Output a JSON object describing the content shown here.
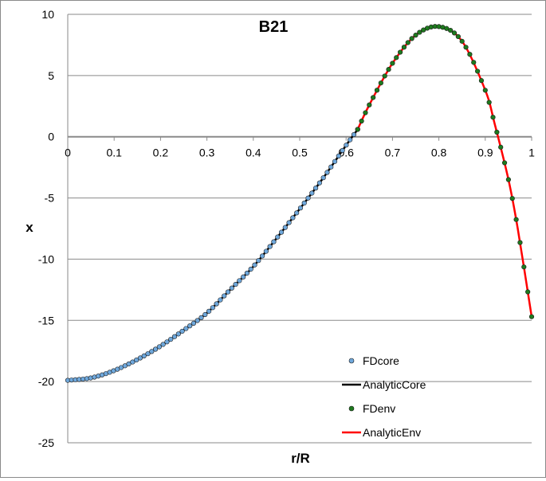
{
  "chart_data": {
    "type": "line",
    "title": "B21",
    "xlabel": "r/R",
    "ylabel": "x",
    "xlim": [
      0,
      1
    ],
    "ylim": [
      -25,
      10
    ],
    "grid": true,
    "x_ticks": [
      "0",
      "0.1",
      "0.2",
      "0.3",
      "0.4",
      "0.5",
      "0.6",
      "0.7",
      "0.8",
      "0.9",
      "1"
    ],
    "y_ticks": [
      "10",
      "5",
      "0",
      "-5",
      "-10",
      "-15",
      "-20",
      "-25"
    ],
    "legend_position": "bottom-right",
    "series": [
      {
        "name": "FDcore",
        "style": "markers",
        "color": "#6fa8dc",
        "x": [
          0.0,
          0.05,
          0.1,
          0.15,
          0.2,
          0.25,
          0.3,
          0.35,
          0.4,
          0.45,
          0.5,
          0.55,
          0.6,
          0.625
        ],
        "y": [
          -19.9,
          -19.7,
          -19.1,
          -18.2,
          -17.1,
          -15.8,
          -14.4,
          -12.5,
          -10.6,
          -8.3,
          -5.9,
          -3.4,
          -0.7,
          0.6
        ]
      },
      {
        "name": "AnalyticCore",
        "style": "line",
        "color": "#000000",
        "x": [
          0.0,
          0.05,
          0.1,
          0.15,
          0.2,
          0.25,
          0.3,
          0.35,
          0.4,
          0.45,
          0.5,
          0.55,
          0.6,
          0.625
        ],
        "y": [
          -19.9,
          -19.7,
          -19.1,
          -18.2,
          -17.1,
          -15.8,
          -14.4,
          -12.5,
          -10.6,
          -8.3,
          -5.9,
          -3.4,
          -0.7,
          0.6
        ]
      },
      {
        "name": "FDenv",
        "style": "markers",
        "color": "#1e7a1e",
        "x": [
          0.625,
          0.65,
          0.7,
          0.75,
          0.8,
          0.85,
          0.9,
          0.92,
          0.95,
          0.97,
          1.0
        ],
        "y": [
          0.6,
          2.6,
          6.0,
          8.3,
          9.0,
          7.8,
          3.8,
          1.1,
          -3.5,
          -7.5,
          -14.7
        ]
      },
      {
        "name": "AnalyticEnv",
        "style": "line",
        "color": "#ff0000",
        "x": [
          0.625,
          0.65,
          0.7,
          0.75,
          0.8,
          0.85,
          0.9,
          0.92,
          0.95,
          0.97,
          1.0
        ],
        "y": [
          0.6,
          2.6,
          6.0,
          8.3,
          9.0,
          7.8,
          3.8,
          1.1,
          -3.5,
          -7.5,
          -14.7
        ]
      }
    ]
  }
}
